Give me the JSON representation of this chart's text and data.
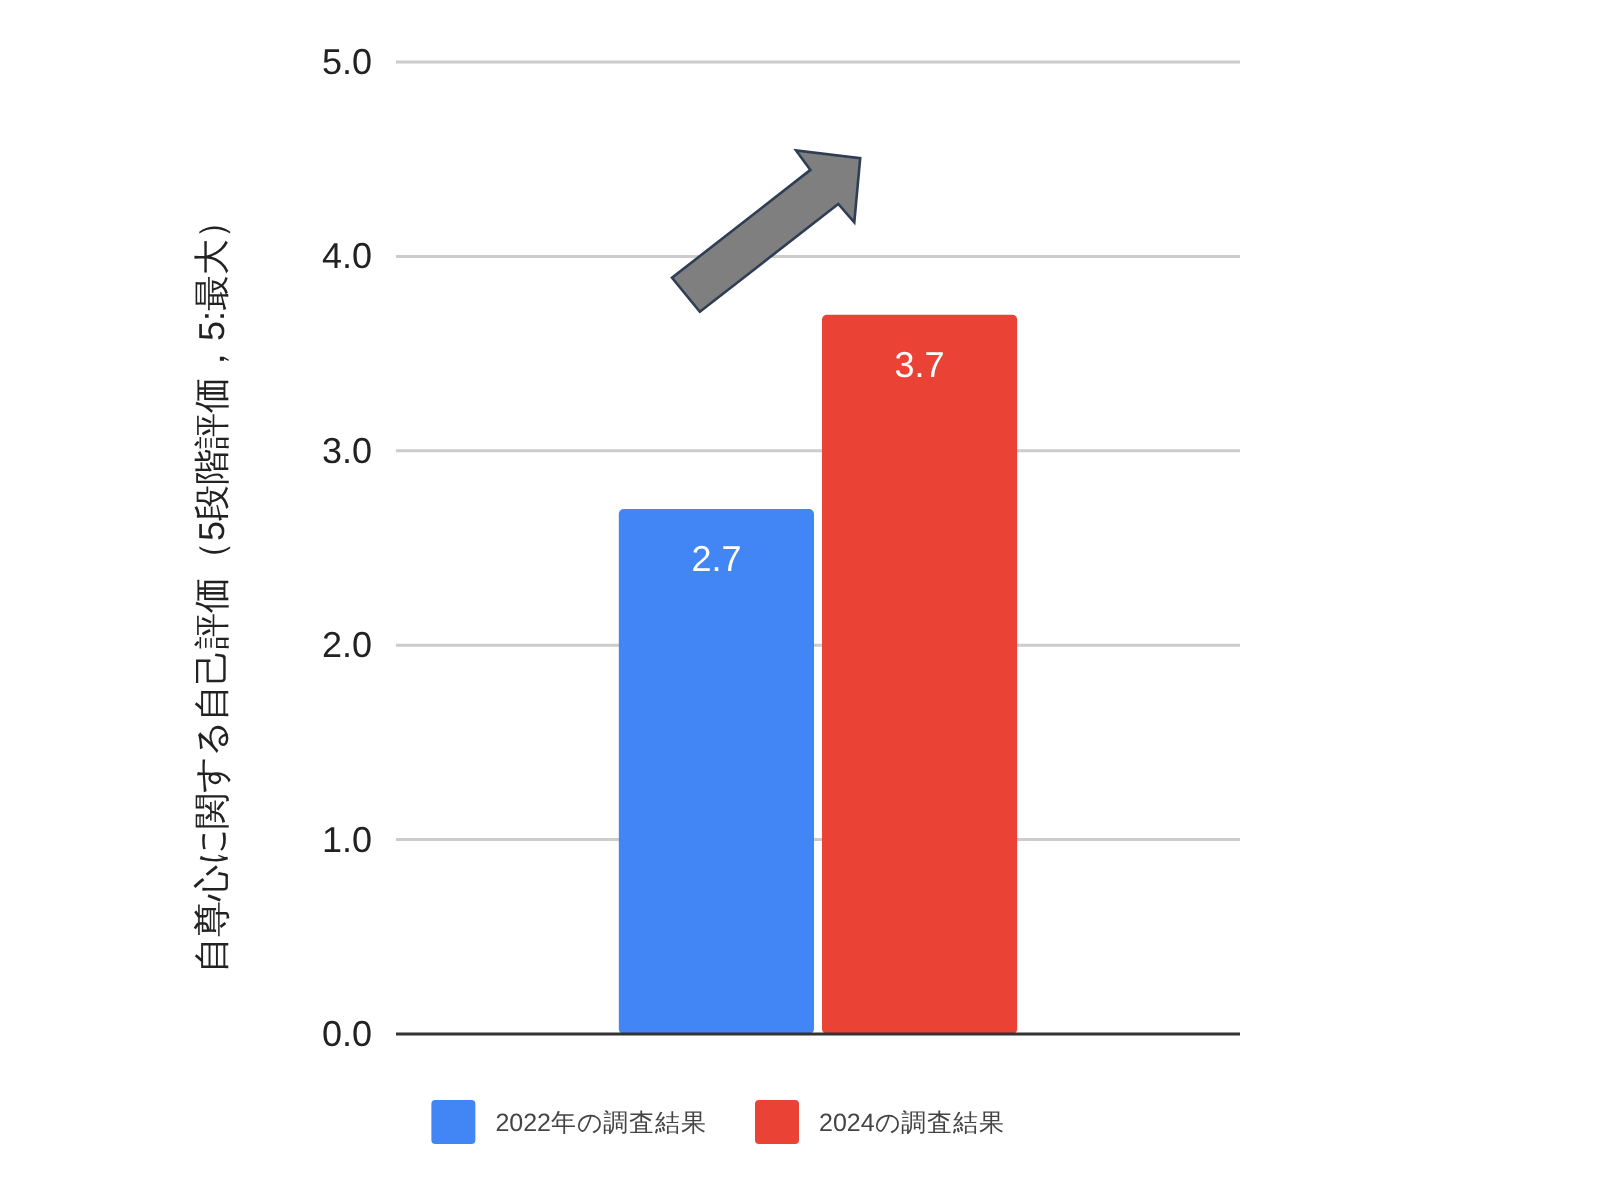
{
  "chart_data": {
    "type": "bar",
    "ylabel": "自尊心に関する自己評価（5段階評価，5:最大）",
    "categories": [
      null
    ],
    "series": [
      {
        "name": "2022年の調査結果",
        "color": "#4285f4",
        "values": [
          2.7
        ]
      },
      {
        "name": "2024の調査結果",
        "color": "#ea4335",
        "values": [
          3.7
        ]
      }
    ],
    "ylim": [
      0,
      5
    ],
    "yticks": [
      {
        "value": 0,
        "label": "0.0"
      },
      {
        "value": 1,
        "label": "1.0"
      },
      {
        "value": 2,
        "label": "2.0"
      },
      {
        "value": 3,
        "label": "3.0"
      },
      {
        "value": 4,
        "label": "4.0"
      },
      {
        "value": 5,
        "label": "5.0"
      }
    ],
    "grid": "y",
    "legend": "bottom",
    "data_labels": true
  }
}
